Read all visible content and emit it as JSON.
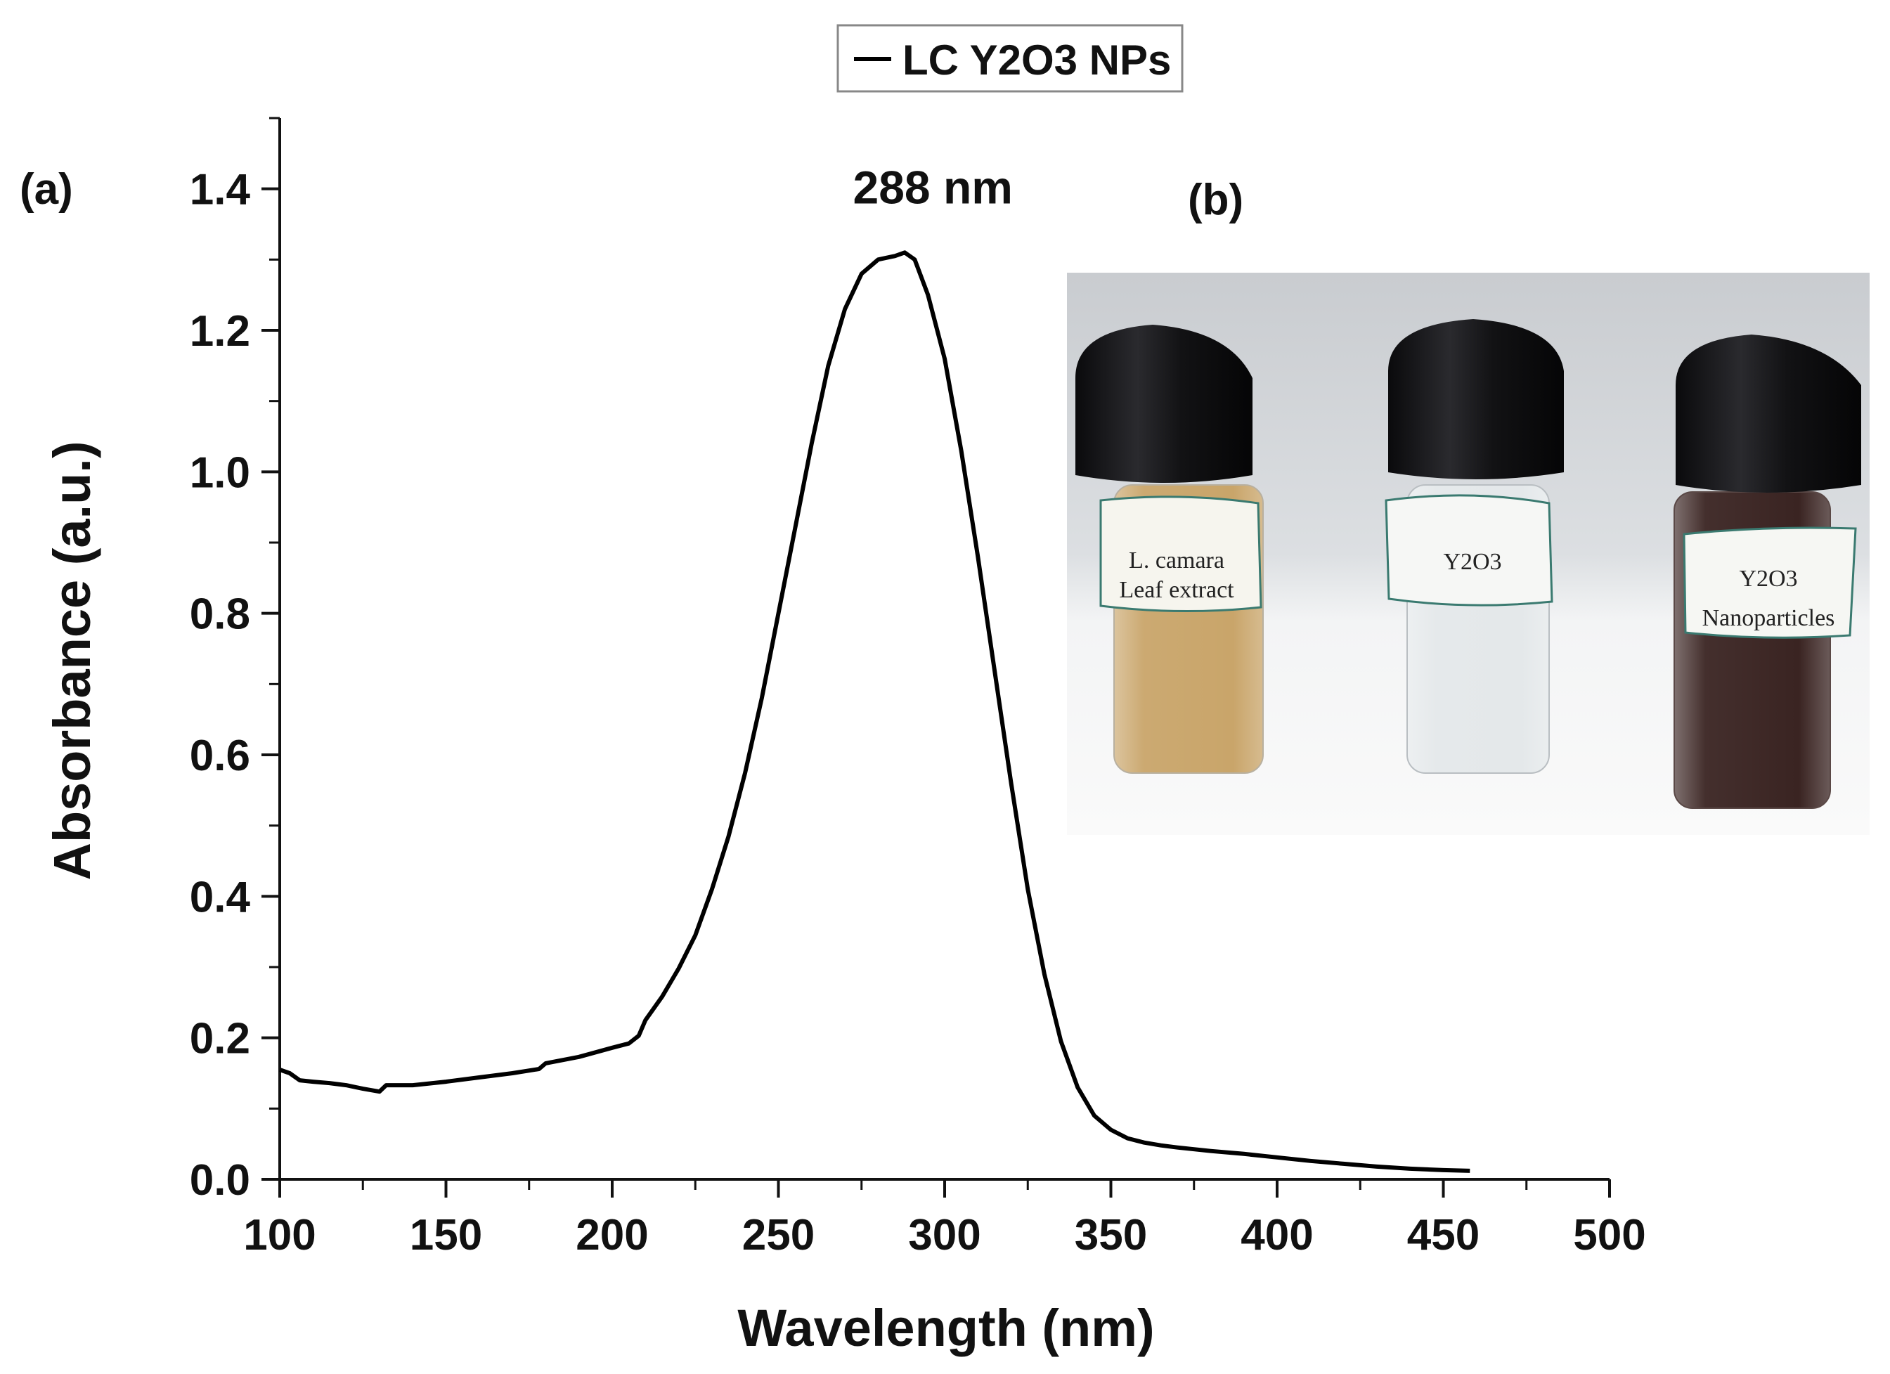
{
  "chart_data": {
    "type": "line",
    "panel_label": "(a)",
    "xlabel": "Wavelength (nm)",
    "ylabel": "Absorbance (a.u.)",
    "xlim": [
      100,
      500
    ],
    "ylim": [
      0.0,
      1.5
    ],
    "x_ticks": [
      100,
      150,
      200,
      250,
      300,
      350,
      400,
      450,
      500
    ],
    "x_tick_labels": [
      "100",
      "150",
      "200",
      "250",
      "300",
      "350",
      "400",
      "450",
      "500"
    ],
    "y_ticks": [
      0.0,
      0.2,
      0.4,
      0.6,
      0.8,
      1.0,
      1.2,
      1.4
    ],
    "y_tick_labels": [
      "0.0",
      "0.2",
      "0.4",
      "0.6",
      "0.8",
      "1.0",
      "1.2",
      "1.4"
    ],
    "legend": {
      "label": "LC Y2O3 NPs",
      "placement": "top-center"
    },
    "annotation": {
      "text": "288 nm",
      "x": 288,
      "y": 1.31
    },
    "series": [
      {
        "name": "LC Y2O3 NPs",
        "color": "#000000",
        "x": [
          100,
          103,
          106,
          110,
          115,
          120,
          125,
          130,
          132,
          140,
          150,
          160,
          170,
          178,
          180,
          190,
          200,
          205,
          208,
          210,
          215,
          220,
          225,
          230,
          235,
          240,
          245,
          250,
          255,
          260,
          265,
          270,
          275,
          280,
          285,
          288,
          291,
          295,
          300,
          305,
          310,
          315,
          320,
          325,
          330,
          335,
          340,
          345,
          350,
          355,
          360,
          365,
          370,
          380,
          390,
          400,
          410,
          420,
          430,
          440,
          450,
          458
        ],
        "y": [
          0.155,
          0.15,
          0.14,
          0.138,
          0.136,
          0.133,
          0.128,
          0.124,
          0.133,
          0.133,
          0.138,
          0.144,
          0.15,
          0.156,
          0.164,
          0.173,
          0.186,
          0.192,
          0.203,
          0.225,
          0.258,
          0.298,
          0.345,
          0.41,
          0.485,
          0.575,
          0.68,
          0.8,
          0.92,
          1.04,
          1.15,
          1.23,
          1.28,
          1.3,
          1.305,
          1.31,
          1.3,
          1.25,
          1.16,
          1.03,
          0.88,
          0.72,
          0.56,
          0.41,
          0.29,
          0.195,
          0.13,
          0.09,
          0.07,
          0.058,
          0.052,
          0.048,
          0.045,
          0.04,
          0.036,
          0.031,
          0.026,
          0.022,
          0.018,
          0.015,
          0.013,
          0.012
        ]
      }
    ]
  },
  "inset": {
    "panel_label": "(b)",
    "vials": [
      {
        "line1": "L. camara",
        "line2": "Leaf extract",
        "liquid_color": "#c9a56a"
      },
      {
        "line1": "Y2O3",
        "line2": "",
        "liquid_color": "#e4e8ea"
      },
      {
        "line1": "Y2O3",
        "line2": "Nanoparticles",
        "liquid_color": "#3a2422"
      }
    ]
  }
}
